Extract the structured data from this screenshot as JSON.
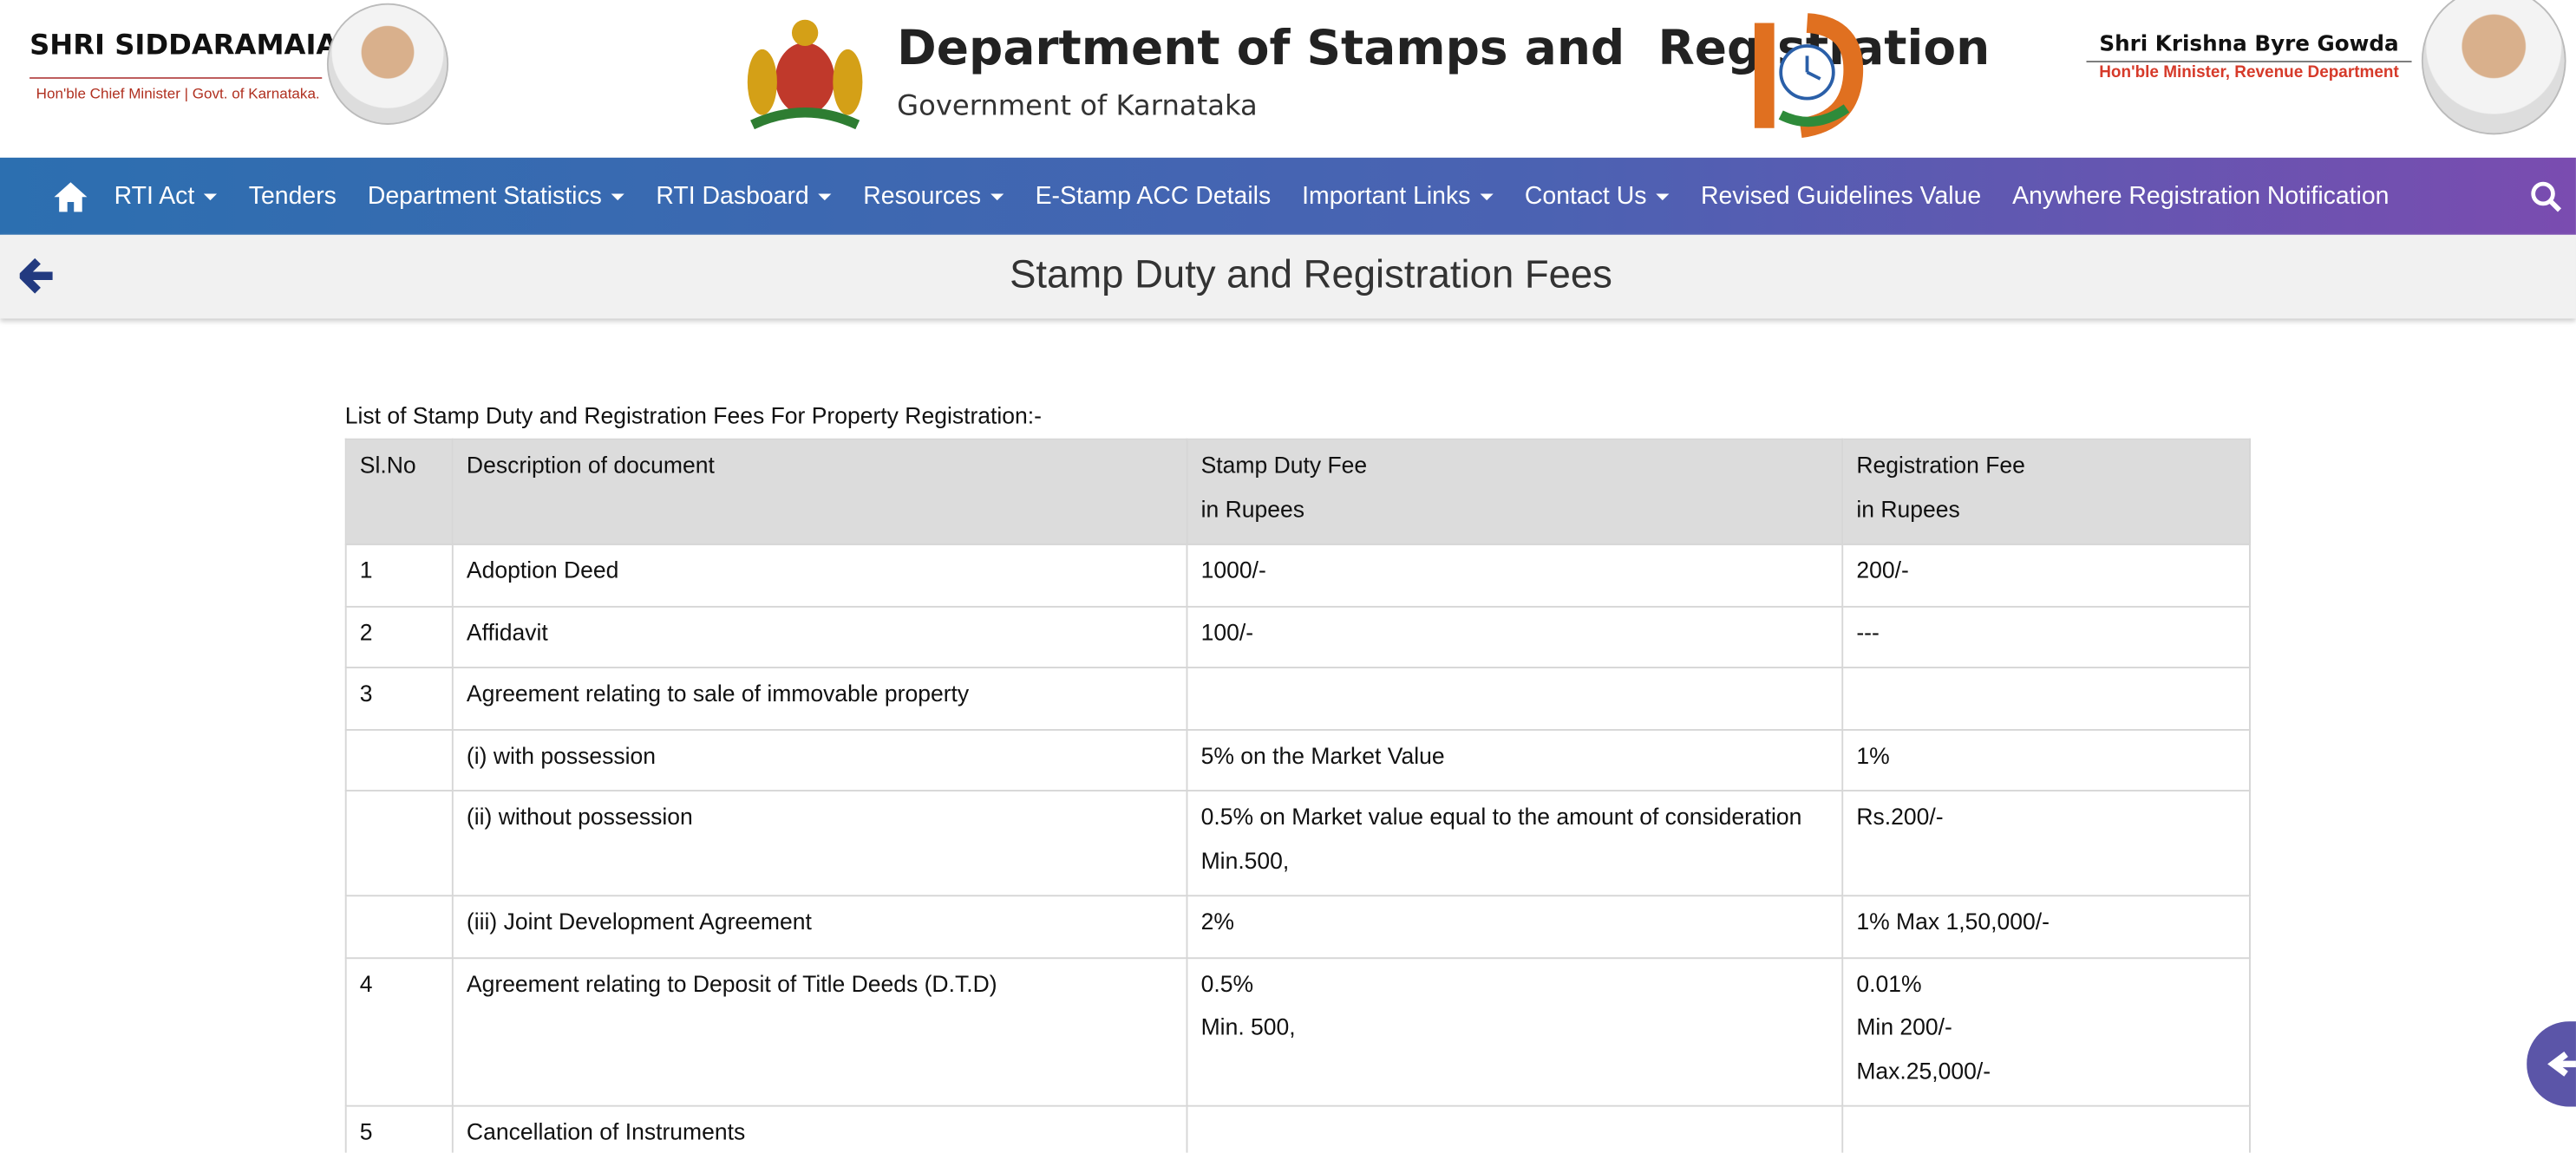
{
  "header": {
    "left_name": "SHRI SIDDARAMAIAH",
    "left_subtitle": "Hon'ble Chief Minister | Govt. of Karnataka.",
    "title": "Department of Stamps and  Registration",
    "subtitle": "Government of Karnataka",
    "right_name": "Shri Krishna Byre Gowda",
    "right_subtitle": "Hon'ble Minister, Revenue Department"
  },
  "nav": [
    {
      "label": "RTI Act",
      "dropdown": true
    },
    {
      "label": "Tenders",
      "dropdown": false
    },
    {
      "label": "Department Statistics",
      "dropdown": true
    },
    {
      "label": "RTI Dasboard",
      "dropdown": true
    },
    {
      "label": "Resources",
      "dropdown": true
    },
    {
      "label": "E-Stamp ACC Details",
      "dropdown": false
    },
    {
      "label": "Important Links",
      "dropdown": true
    },
    {
      "label": "Contact Us",
      "dropdown": true
    },
    {
      "label": "Revised Guidelines Value",
      "dropdown": false
    },
    {
      "label": "Anywhere Registration Notification",
      "dropdown": false
    }
  ],
  "page_title": "Stamp Duty and Registration Fees",
  "table": {
    "caption": "List of Stamp Duty and Registration Fees For Property Registration:-",
    "header": [
      [
        "Sl.No"
      ],
      [
        "Description of document"
      ],
      [
        "Stamp Duty Fee",
        "in Rupees"
      ],
      [
        "Registration Fee",
        "in Rupees"
      ]
    ],
    "rows": [
      [
        [
          "1"
        ],
        [
          "Adoption Deed"
        ],
        [
          "1000/-"
        ],
        [
          "200/-"
        ]
      ],
      [
        [
          "2"
        ],
        [
          "Affidavit"
        ],
        [
          "100/-"
        ],
        [
          "---"
        ]
      ],
      [
        [
          "3"
        ],
        [
          "Agreement relating to sale of immovable property"
        ],
        [],
        []
      ],
      [
        [],
        [
          "(i) with possession"
        ],
        [
          "5% on the Market Value"
        ],
        [
          "1%"
        ]
      ],
      [
        [],
        [
          "(ii) without possession"
        ],
        [
          "0.5% on Market value equal to the amount of consideration",
          "Min.500,"
        ],
        [
          "Rs.200/-"
        ]
      ],
      [
        [],
        [
          "(iii) Joint Development Agreement"
        ],
        [
          "2%"
        ],
        [
          "1% Max 1,50,000/-"
        ]
      ],
      [
        [
          "4"
        ],
        [
          "Agreement relating to Deposit of Title Deeds (D.T.D)"
        ],
        [
          "0.5%",
          "Min. 500,"
        ],
        [
          "0.01%",
          "Min 200/-",
          "Max.25,000/-"
        ]
      ],
      [
        [
          "5"
        ],
        [
          "Cancellation of Instruments"
        ],
        [],
        []
      ]
    ]
  }
}
